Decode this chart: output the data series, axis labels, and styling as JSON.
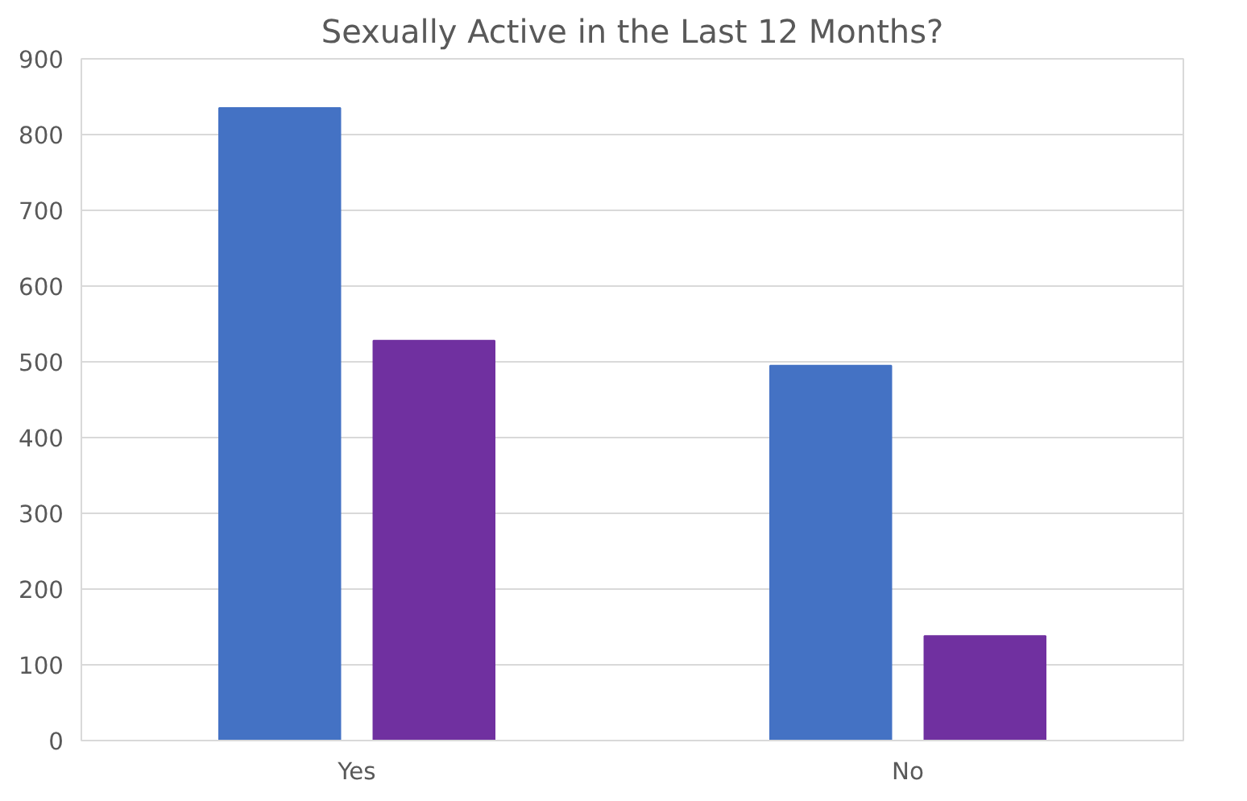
{
  "chart_data": {
    "type": "bar",
    "title": "Sexually Active in the Last 12 Months?",
    "categories": [
      "Yes",
      "No"
    ],
    "series": [
      {
        "color": "#4472c4",
        "values": [
          835,
          495
        ]
      },
      {
        "color": "#7030a0",
        "values": [
          528,
          138
        ]
      }
    ],
    "ylim": [
      0,
      900
    ],
    "yticks": [
      0,
      100,
      200,
      300,
      400,
      500,
      600,
      700,
      800,
      900
    ],
    "grid": "y"
  }
}
